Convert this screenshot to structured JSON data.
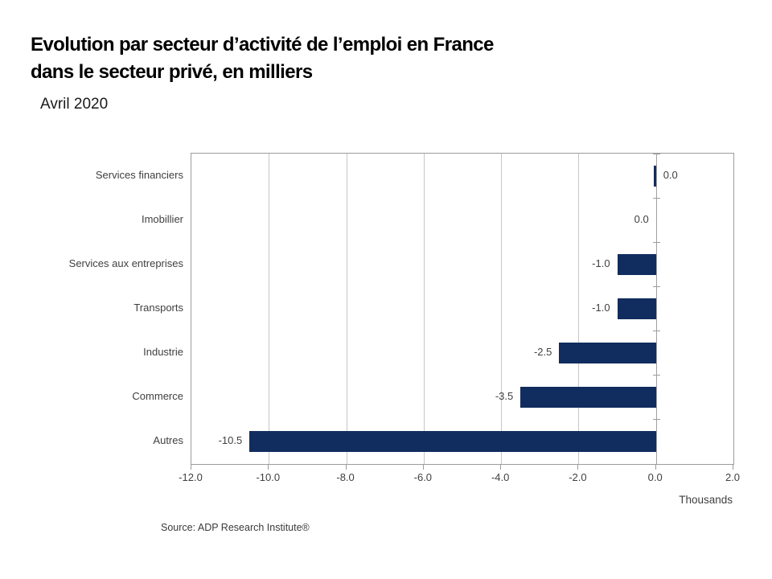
{
  "title": {
    "line1": "Evolution par secteur d’activité de l’emploi en France",
    "line2": "dans le secteur privé, en milliers"
  },
  "subtitle": "Avril 2020",
  "source": "Source: ADP Research Institute®",
  "chart_data": {
    "type": "bar",
    "orientation": "horizontal",
    "title": "Evolution par secteur d’activité de l’emploi en France dans le secteur privé, en milliers",
    "subtitle": "Avril 2020",
    "categories": [
      "Services financiers",
      "Imobillier",
      "Services aux entreprises",
      "Transports",
      "Industrie",
      "Commerce",
      "Autres"
    ],
    "values": [
      0.0,
      0.0,
      -1.0,
      -1.0,
      -2.5,
      -3.5,
      -10.5
    ],
    "data_labels": [
      "0.0",
      "0.0",
      "-1.0",
      "-1.0",
      "-2.5",
      "-3.5",
      "-10.5"
    ],
    "label_sides": [
      "right",
      "left",
      "left",
      "left",
      "left",
      "left",
      "left"
    ],
    "bar_visible": [
      true,
      false,
      true,
      true,
      true,
      true,
      true
    ],
    "xlabel": "Thousands",
    "x_ticks": [
      -12.0,
      -10.0,
      -8.0,
      -6.0,
      -4.0,
      -2.0,
      0.0,
      2.0
    ],
    "x_tick_labels": [
      "-12.0",
      "-10.0",
      "-8.0",
      "-6.0",
      "-4.0",
      "-2.0",
      "0.0",
      "2.0"
    ],
    "xlim": [
      -12.0,
      2.0
    ],
    "grid": true,
    "legend": false,
    "bar_color": "#112c5e",
    "gridline_color": "#c6c6c6"
  }
}
